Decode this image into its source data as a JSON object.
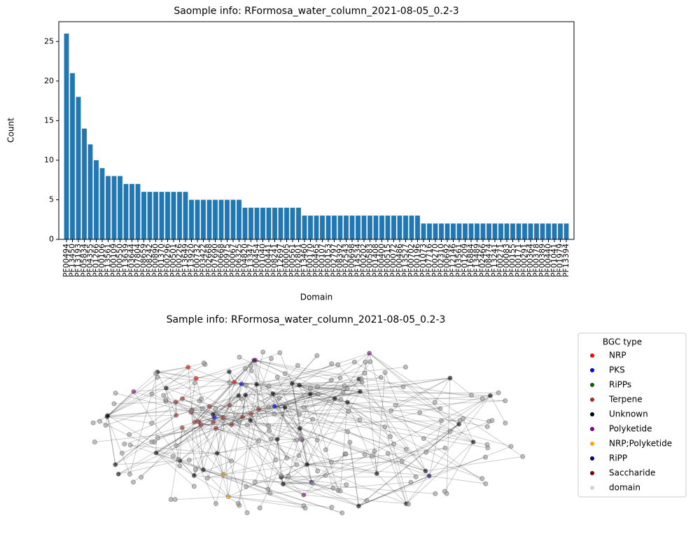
{
  "chart_data": [
    {
      "type": "bar",
      "title": "Saomple info: RFormosa_water_column_2021-08-05_0.2-3",
      "xlabel": "Domain",
      "ylabel": "Count",
      "color": "#1f77b4",
      "categories": [
        "PF00494",
        "PF13450",
        "PF13193",
        "PF05834",
        "PF04355",
        "PF01266",
        "PF00106",
        "PF13561",
        "PF00109",
        "PF00550",
        "PF13639",
        "PF03644",
        "PF07804",
        "PF08659",
        "PF08242",
        "PF00890",
        "PF01370",
        "PF00296",
        "PF00501",
        "PF00226",
        "PF13649",
        "PF13920",
        "PF00732",
        "PF03422",
        "PF02668",
        "PF07690",
        "PF00668",
        "PF00975",
        "PF00067",
        "PF06325",
        "PF04820",
        "PF13347",
        "PF00454",
        "PF01040",
        "PF00441",
        "PF08241",
        "PF12697",
        "PF00005",
        "PF00561",
        "PF02801",
        "PF13460",
        "PF00170",
        "PF00465",
        "PF00107",
        "PF00153",
        "PF02797",
        "PF08392",
        "PF02543",
        "PF00698",
        "PF14534",
        "PF00202",
        "PF00583",
        "PF01408",
        "PF00400",
        "PF00515",
        "PF00072",
        "PF00486",
        "PF13527",
        "PF00702",
        "PF00196",
        "PF01073",
        "PF07716",
        "PF00270",
        "PF02310",
        "PF00692",
        "PF12146",
        "PF03561",
        "PF01209",
        "PF16884",
        "PF13489",
        "PF02466",
        "PF08474",
        "PF13241",
        "PF00271",
        "PF00083",
        "PF00155",
        "PF00171",
        "PF00291",
        "PF00364",
        "PF00378",
        "PF00389",
        "PF00440",
        "PF01041",
        "PF01979",
        "PF13394"
      ],
      "values": [
        26,
        21,
        18,
        14,
        12,
        10,
        9,
        8,
        8,
        8,
        7,
        7,
        7,
        6,
        6,
        6,
        6,
        6,
        6,
        6,
        6,
        5,
        5,
        5,
        5,
        5,
        5,
        5,
        5,
        5,
        4,
        4,
        4,
        4,
        4,
        4,
        4,
        4,
        4,
        4,
        3,
        3,
        3,
        3,
        3,
        3,
        3,
        3,
        3,
        3,
        3,
        3,
        3,
        3,
        3,
        3,
        3,
        3,
        3,
        3,
        2,
        2,
        2,
        2,
        2,
        2,
        2,
        2,
        2,
        2,
        2,
        2,
        2,
        2,
        2,
        2,
        2,
        2,
        2,
        2,
        2,
        2,
        2,
        2,
        2
      ],
      "ylim": [
        0,
        27.5
      ],
      "yticks": [
        0,
        5,
        10,
        15,
        20,
        25
      ]
    },
    {
      "type": "network",
      "title": "Sample info: RFormosa_water_column_2021-08-05_0.2-3",
      "legend_title": "BGC type",
      "legend": "upper right outside",
      "series": [
        {
          "name": "NRP",
          "color": "#ff0000"
        },
        {
          "name": "PKS",
          "color": "#0000ff"
        },
        {
          "name": "RiPPs",
          "color": "#006400"
        },
        {
          "name": "Terpene",
          "color": "#a52a2a"
        },
        {
          "name": "Unknown",
          "color": "#000000"
        },
        {
          "name": "Polyketide",
          "color": "#800080"
        },
        {
          "name": "NRP;Polyketide",
          "color": "#ffa500"
        },
        {
          "name": "RiPP",
          "color": "#000080"
        },
        {
          "name": "Saccharide",
          "color": "#800000"
        },
        {
          "name": "domain",
          "color": "#d3d3d3"
        }
      ]
    }
  ]
}
